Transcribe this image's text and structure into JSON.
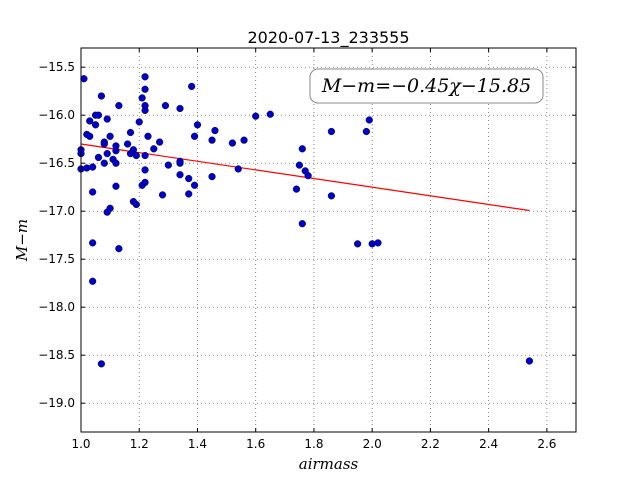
{
  "chart_data": {
    "type": "scatter",
    "title": "2020-07-13_233555",
    "xlabel": "airmass",
    "ylabel": "M−m",
    "xlim": [
      1.0,
      2.7
    ],
    "ylim": [
      -19.3,
      -15.3
    ],
    "y_inverted": true,
    "grid": true,
    "xticks": [
      1.0,
      1.2,
      1.4,
      1.6,
      1.8,
      2.0,
      2.2,
      2.4,
      2.6
    ],
    "xtick_labels": [
      "1.0",
      "1.2",
      "1.4",
      "1.6",
      "1.8",
      "2.0",
      "2.2",
      "2.4",
      "2.6"
    ],
    "yticks": [
      -15.5,
      -16.0,
      -16.5,
      -17.0,
      -17.5,
      -18.0,
      -18.5,
      -19.0
    ],
    "ytick_labels": [
      "−15.5",
      "−16.0",
      "−16.5",
      "−17.0",
      "−17.5",
      "−18.0",
      "−18.5",
      "−19.0"
    ],
    "annotation": "M−m=−0.45χ−15.85",
    "fit": {
      "slope": -0.45,
      "intercept": -15.85,
      "x_range": [
        1.0,
        2.54
      ],
      "color": "#ff0000"
    },
    "marker_color": "#0000cc",
    "points": [
      [
        1.0,
        -16.56
      ],
      [
        1.0,
        -16.4
      ],
      [
        1.0,
        -16.36
      ],
      [
        1.01,
        -15.62
      ],
      [
        1.02,
        -16.2
      ],
      [
        1.02,
        -16.55
      ],
      [
        1.03,
        -16.22
      ],
      [
        1.03,
        -16.06
      ],
      [
        1.04,
        -16.54
      ],
      [
        1.04,
        -16.8
      ],
      [
        1.04,
        -17.33
      ],
      [
        1.04,
        -17.73
      ],
      [
        1.05,
        -16.1
      ],
      [
        1.05,
        -16.0
      ],
      [
        1.06,
        -16.44
      ],
      [
        1.06,
        -16.0
      ],
      [
        1.07,
        -18.59
      ],
      [
        1.07,
        -15.8
      ],
      [
        1.08,
        -16.5
      ],
      [
        1.08,
        -16.28
      ],
      [
        1.08,
        -16.3
      ],
      [
        1.09,
        -16.4
      ],
      [
        1.09,
        -17.01
      ],
      [
        1.09,
        -16.04
      ],
      [
        1.1,
        -16.97
      ],
      [
        1.1,
        -16.22
      ],
      [
        1.11,
        -16.46
      ],
      [
        1.12,
        -16.5
      ],
      [
        1.12,
        -16.37
      ],
      [
        1.12,
        -16.32
      ],
      [
        1.12,
        -16.74
      ],
      [
        1.13,
        -15.9
      ],
      [
        1.13,
        -17.39
      ],
      [
        1.16,
        -16.3
      ],
      [
        1.17,
        -16.18
      ],
      [
        1.17,
        -16.4
      ],
      [
        1.18,
        -16.9
      ],
      [
        1.18,
        -16.36
      ],
      [
        1.19,
        -16.42
      ],
      [
        1.19,
        -16.93
      ],
      [
        1.2,
        -16.07
      ],
      [
        1.21,
        -16.73
      ],
      [
        1.21,
        -15.82
      ],
      [
        1.22,
        -15.6
      ],
      [
        1.22,
        -16.42
      ],
      [
        1.22,
        -15.95
      ],
      [
        1.22,
        -16.7
      ],
      [
        1.22,
        -15.9
      ],
      [
        1.22,
        -16.57
      ],
      [
        1.22,
        -15.73
      ],
      [
        1.23,
        -16.22
      ],
      [
        1.25,
        -16.35
      ],
      [
        1.27,
        -16.28
      ],
      [
        1.28,
        -16.83
      ],
      [
        1.29,
        -15.9
      ],
      [
        1.3,
        -16.52
      ],
      [
        1.34,
        -15.93
      ],
      [
        1.34,
        -16.5
      ],
      [
        1.34,
        -16.62
      ],
      [
        1.34,
        -16.48
      ],
      [
        1.37,
        -16.66
      ],
      [
        1.37,
        -16.82
      ],
      [
        1.38,
        -15.7
      ],
      [
        1.39,
        -16.73
      ],
      [
        1.39,
        -16.22
      ],
      [
        1.4,
        -16.1
      ],
      [
        1.45,
        -16.26
      ],
      [
        1.45,
        -16.64
      ],
      [
        1.46,
        -16.16
      ],
      [
        1.52,
        -16.29
      ],
      [
        1.54,
        -16.56
      ],
      [
        1.56,
        -16.26
      ],
      [
        1.6,
        -16.01
      ],
      [
        1.65,
        -15.99
      ],
      [
        1.74,
        -16.77
      ],
      [
        1.75,
        -16.52
      ],
      [
        1.76,
        -16.35
      ],
      [
        1.76,
        -17.13
      ],
      [
        1.77,
        -16.58
      ],
      [
        1.78,
        -16.63
      ],
      [
        1.86,
        -16.17
      ],
      [
        1.86,
        -16.84
      ],
      [
        1.95,
        -17.34
      ],
      [
        1.98,
        -16.17
      ],
      [
        1.99,
        -16.05
      ],
      [
        2.0,
        -17.34
      ],
      [
        2.02,
        -17.33
      ],
      [
        2.54,
        -18.56
      ]
    ]
  }
}
